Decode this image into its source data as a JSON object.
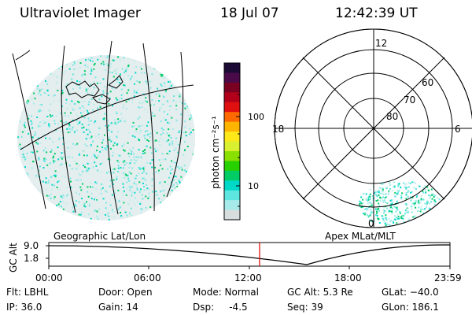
{
  "header": {
    "instrument": "Ultraviolet Imager",
    "date": "18 Jul 07",
    "time": "12:42:39 UT"
  },
  "colorbar": {
    "unit_label": "photon cm⁻²s⁻¹",
    "ticks": [
      "100",
      "10"
    ],
    "colors": [
      "#1b0a33",
      "#4a0a4a",
      "#7a0022",
      "#b3001a",
      "#e01010",
      "#ff6a00",
      "#ffb400",
      "#ffe81a",
      "#d8f030",
      "#8ae000",
      "#28d000",
      "#00cc66",
      "#00d8c8",
      "#5de6e0",
      "#a6eaea",
      "#d8dede"
    ]
  },
  "polar_plot": {
    "mlt_labels": {
      "top": "12",
      "left": "18",
      "right": "6",
      "bottom": "0"
    },
    "lat_labels": [
      "60",
      "70",
      "80"
    ]
  },
  "timeline": {
    "ylabel": "GC Alt",
    "y_ticks": [
      "9.0",
      "1.8"
    ],
    "left_label": "Geographic Lat/Lon",
    "right_label": "Apex  MLat/MLT",
    "x_ticks": [
      "00:00",
      "06:00",
      "12:00",
      "18:00",
      "23:59"
    ],
    "marker_color": "#e00000"
  },
  "status": {
    "filter": "Flt: LBHL",
    "ip": "IP: 36.0",
    "door": "Door: Open",
    "gain": "Gain: 14",
    "mode": "Mode: Normal",
    "dsp": "Dsp:     -4.5",
    "gc_alt": "GC Alt: 5.3 Re",
    "seq": "Seq: 39",
    "glat": "GLat: −40.0",
    "glon": "GLon: 186.1"
  }
}
